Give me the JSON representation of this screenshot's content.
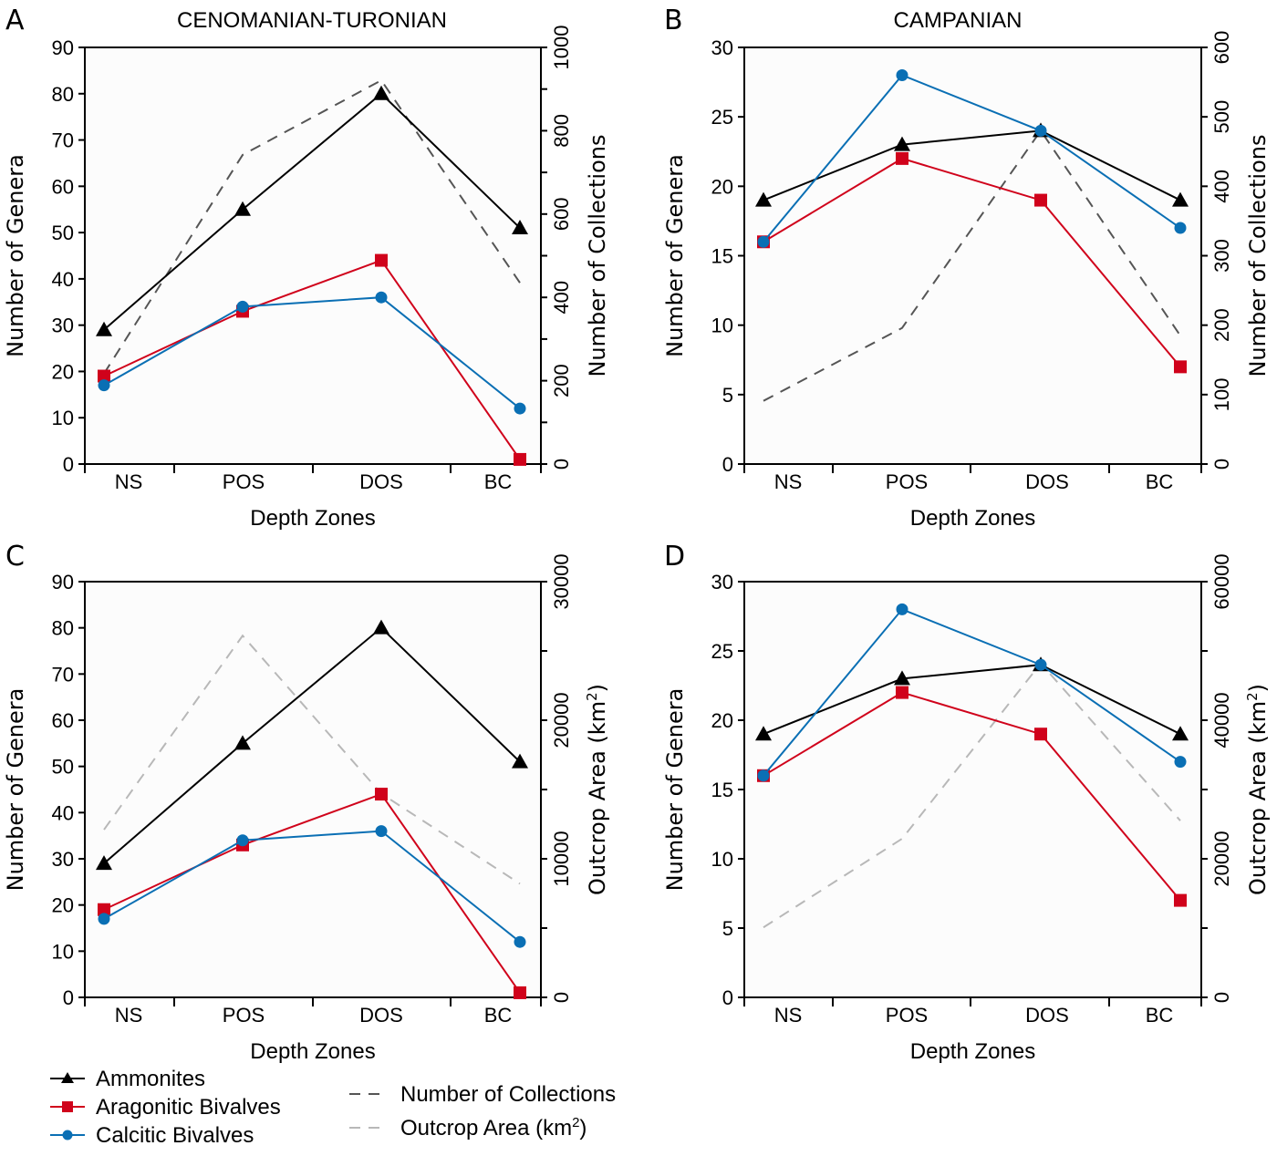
{
  "legend": {
    "items": [
      {
        "key": "ammonites",
        "label": "Ammonites",
        "marker": "triangle",
        "color": "#000000",
        "dash": false
      },
      {
        "key": "aragonitic",
        "label": "Aragonitic Bivalves",
        "marker": "square",
        "color": "#d0021b",
        "dash": false
      },
      {
        "key": "calcitic",
        "label": "Calcitic Bivalves",
        "marker": "circle",
        "color": "#0a6fb4",
        "dash": false
      },
      {
        "key": "collections",
        "label": "Number of Collections",
        "marker": "none",
        "color": "#555555",
        "dash": true
      },
      {
        "key": "outcrop",
        "label": "Outcrop Area (km",
        "label_sup": "2",
        "label_tail": ")",
        "marker": "none",
        "color": "#b8b8b8",
        "dash": true
      }
    ]
  },
  "chart_data": [
    {
      "panel": "A",
      "type": "line",
      "title": "CENOMANIAN-TURONIAN",
      "xlabel": "Depth Zones",
      "ylabel": "Number of Genera",
      "y2label": "Number of Collections",
      "categories": [
        "NS",
        "POS",
        "DOS",
        "BC"
      ],
      "ylim": [
        0,
        90
      ],
      "yticks": [
        0,
        10,
        20,
        30,
        40,
        50,
        60,
        70,
        80,
        90
      ],
      "y2lim": [
        0,
        1000
      ],
      "y2ticks_labeled": [
        0,
        200,
        400,
        600,
        800,
        1000
      ],
      "y2ticks_minor_step": 100,
      "series": [
        {
          "name": "Ammonites",
          "key": "ammonites",
          "axis": "left",
          "values": [
            29,
            55,
            80,
            51
          ]
        },
        {
          "name": "Aragonitic Bivalves",
          "key": "aragonitic",
          "axis": "left",
          "values": [
            19,
            33,
            44,
            1
          ]
        },
        {
          "name": "Calcitic Bivalves",
          "key": "calcitic",
          "axis": "left",
          "values": [
            17,
            34,
            36,
            12
          ]
        },
        {
          "name": "Number of Collections",
          "key": "collections",
          "axis": "right",
          "values": [
            217,
            742,
            921,
            435
          ]
        }
      ],
      "grid": false
    },
    {
      "panel": "B",
      "type": "line",
      "title": "CAMPANIAN",
      "xlabel": "Depth Zones",
      "ylabel": "Number of Genera",
      "y2label": "Number of Collections",
      "categories": [
        "NS",
        "POS",
        "DOS",
        "BC"
      ],
      "ylim": [
        0,
        30
      ],
      "yticks": [
        0,
        5,
        10,
        15,
        20,
        25,
        30
      ],
      "y2lim": [
        0,
        600
      ],
      "y2ticks_labeled": [
        0,
        100,
        200,
        300,
        400,
        500,
        600
      ],
      "y2ticks_minor_step": 100,
      "series": [
        {
          "name": "Ammonites",
          "key": "ammonites",
          "axis": "left",
          "values": [
            19,
            23,
            24,
            19
          ]
        },
        {
          "name": "Aragonitic Bivalves",
          "key": "aragonitic",
          "axis": "left",
          "values": [
            16,
            22,
            19,
            7
          ]
        },
        {
          "name": "Calcitic Bivalves",
          "key": "calcitic",
          "axis": "left",
          "values": [
            16,
            28,
            24,
            17
          ]
        },
        {
          "name": "Number of Collections",
          "key": "collections",
          "axis": "right",
          "values": [
            91,
            196,
            480,
            185
          ]
        }
      ],
      "grid": false
    },
    {
      "panel": "C",
      "type": "line",
      "title": "",
      "xlabel": "Depth Zones",
      "ylabel": "Number of Genera",
      "y2label": "Outcrop Area (km",
      "y2label_sup": "2",
      "y2label_tail": ")",
      "categories": [
        "NS",
        "POS",
        "DOS",
        "BC"
      ],
      "ylim": [
        0,
        90
      ],
      "yticks": [
        0,
        10,
        20,
        30,
        40,
        50,
        60,
        70,
        80,
        90
      ],
      "y2lim": [
        0,
        30000
      ],
      "y2ticks_labeled": [
        0,
        10000,
        20000,
        30000
      ],
      "y2ticks_minor_step": 5000,
      "series": [
        {
          "name": "Ammonites",
          "key": "ammonites",
          "axis": "left",
          "values": [
            29,
            55,
            80,
            51
          ]
        },
        {
          "name": "Aragonitic Bivalves",
          "key": "aragonitic",
          "axis": "left",
          "values": [
            19,
            33,
            44,
            1
          ]
        },
        {
          "name": "Calcitic Bivalves",
          "key": "calcitic",
          "axis": "left",
          "values": [
            17,
            34,
            36,
            12
          ]
        },
        {
          "name": "Outcrop Area (km2)",
          "key": "outcrop",
          "axis": "right",
          "values": [
            12100,
            26100,
            14700,
            8200
          ]
        }
      ],
      "grid": false
    },
    {
      "panel": "D",
      "type": "line",
      "title": "",
      "xlabel": "Depth Zones",
      "ylabel": "Number of Genera",
      "y2label": "Outcrop Area (km",
      "y2label_sup": "2",
      "y2label_tail": ")",
      "categories": [
        "NS",
        "POS",
        "DOS",
        "BC"
      ],
      "ylim": [
        0,
        30
      ],
      "yticks": [
        0,
        5,
        10,
        15,
        20,
        25,
        30
      ],
      "y2lim": [
        0,
        60000
      ],
      "y2ticks_labeled": [
        0,
        20000,
        40000,
        60000
      ],
      "y2ticks_minor_step": 10000,
      "series": [
        {
          "name": "Ammonites",
          "key": "ammonites",
          "axis": "left",
          "values": [
            19,
            23,
            24,
            19
          ]
        },
        {
          "name": "Aragonitic Bivalves",
          "key": "aragonitic",
          "axis": "left",
          "values": [
            16,
            22,
            19,
            7
          ]
        },
        {
          "name": "Calcitic Bivalves",
          "key": "calcitic",
          "axis": "left",
          "values": [
            16,
            28,
            24,
            17
          ]
        },
        {
          "name": "Outcrop Area (km2)",
          "key": "outcrop",
          "axis": "right",
          "values": [
            10100,
            22900,
            48200,
            25500
          ]
        }
      ],
      "grid": false
    }
  ]
}
